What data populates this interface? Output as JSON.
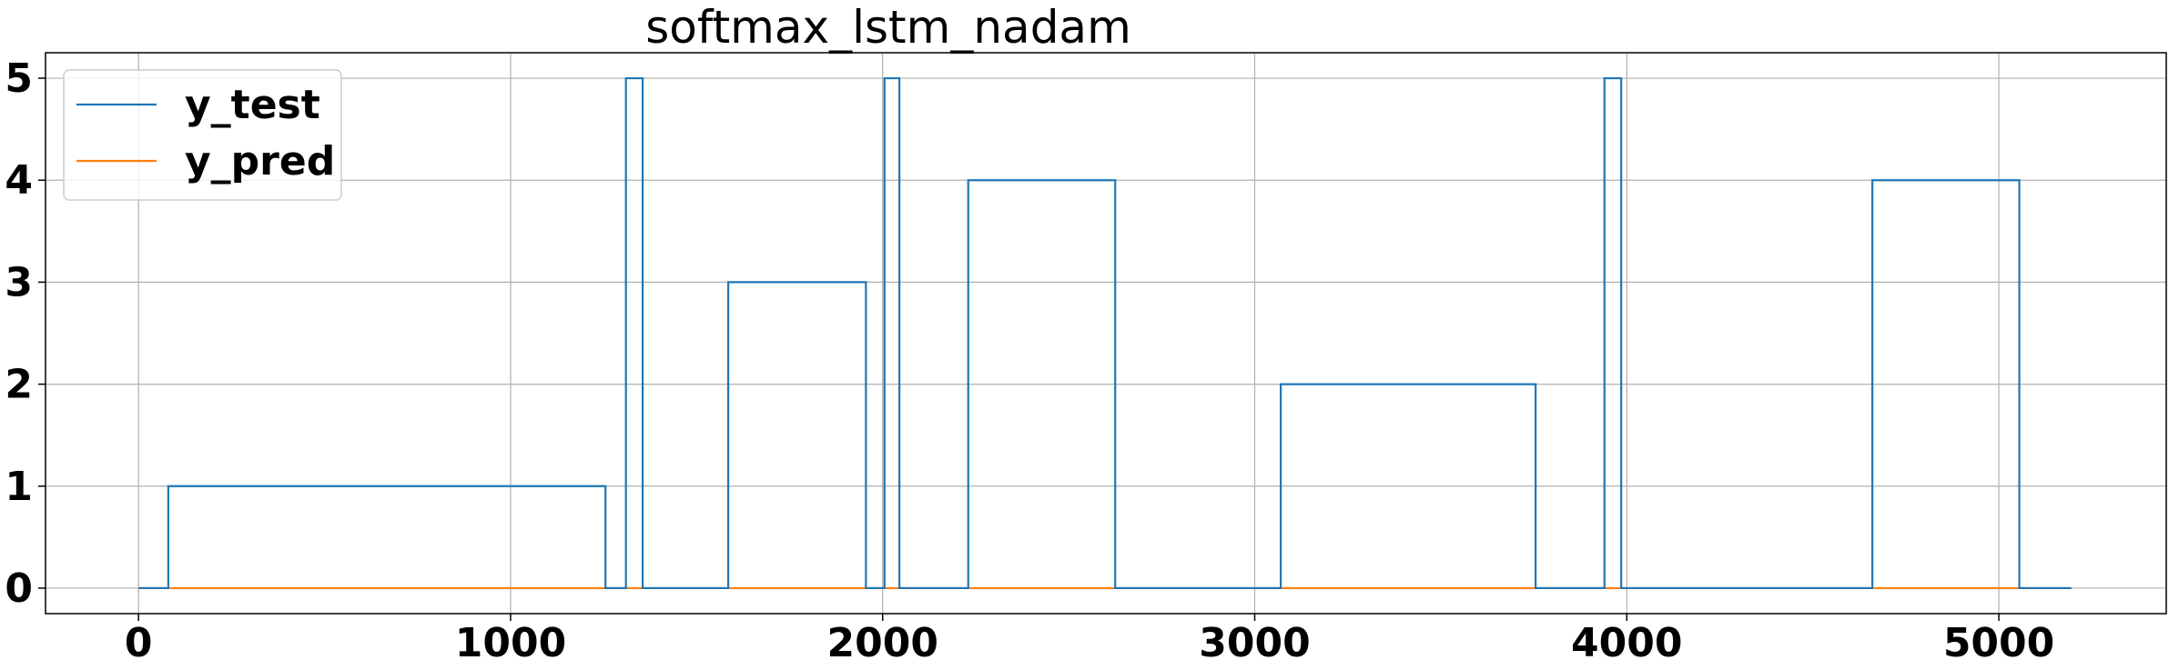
{
  "chart_data": {
    "type": "line",
    "title": "softmax_lstm_nadam",
    "xlabel": "",
    "ylabel": "",
    "xlim": [
      -250,
      5450
    ],
    "ylim": [
      -0.25,
      5.25
    ],
    "xticks": [
      0,
      1000,
      2000,
      3000,
      4000,
      5000
    ],
    "yticks": [
      0,
      1,
      2,
      3,
      4,
      5
    ],
    "grid": true,
    "legend_position": "top-left",
    "colors": {
      "y_test": "#1f77b4",
      "y_pred": "#ff7f0e"
    },
    "series": [
      {
        "name": "y_test",
        "step": true,
        "x": [
          0,
          80,
          1255,
          1310,
          1355,
          1585,
          1955,
          2005,
          2045,
          2230,
          2625,
          3070,
          3755,
          3940,
          3985,
          4660,
          5055,
          5195
        ],
        "y": [
          0,
          1,
          0,
          5,
          0,
          3,
          0,
          5,
          0,
          4,
          0,
          2,
          0,
          5,
          0,
          4,
          0,
          0
        ]
      },
      {
        "name": "y_pred",
        "step": true,
        "x": [
          0,
          5195
        ],
        "y": [
          0,
          0
        ]
      }
    ]
  }
}
